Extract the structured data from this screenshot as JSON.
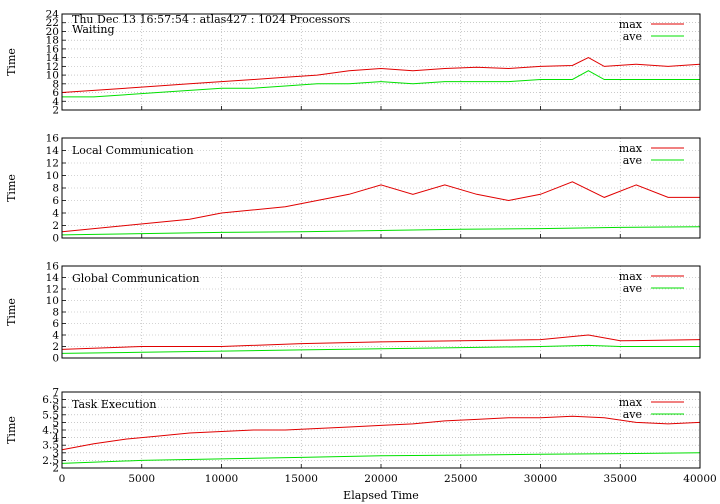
{
  "figure": {
    "header": "Thu Dec 13 16:57:54 : atlas427 : 1024 Processors",
    "xlabel": "Elapsed Time",
    "series_colors": {
      "max": "#e00000",
      "ave": "#00e000"
    }
  },
  "chart_data": [
    {
      "type": "line",
      "title": "Waiting",
      "xlabel": "Elapsed Time",
      "ylabel": "Time",
      "xlim": [
        0,
        40000
      ],
      "ylim": [
        2,
        24
      ],
      "yticks": [
        2,
        4,
        6,
        8,
        10,
        12,
        14,
        16,
        18,
        20,
        22,
        24
      ],
      "xticks": [
        0,
        5000,
        10000,
        15000,
        20000,
        25000,
        30000,
        35000,
        40000
      ],
      "show_xtick_labels": false,
      "grid": true,
      "legend": "top-right",
      "series": [
        {
          "name": "max",
          "color": "#e00000",
          "x": [
            0,
            2000,
            4000,
            6000,
            8000,
            10000,
            12000,
            14000,
            16000,
            18000,
            20000,
            22000,
            24000,
            26000,
            28000,
            30000,
            32000,
            33000,
            34000,
            36000,
            38000,
            40000
          ],
          "values": [
            6,
            6.5,
            7,
            7.5,
            8,
            8.5,
            9,
            9.5,
            10,
            11,
            11.5,
            11,
            11.5,
            11.8,
            11.5,
            12,
            12.2,
            14,
            12,
            12.5,
            12,
            12.5
          ]
        },
        {
          "name": "ave",
          "color": "#00e000",
          "x": [
            0,
            2000,
            4000,
            6000,
            8000,
            10000,
            12000,
            14000,
            16000,
            18000,
            20000,
            22000,
            24000,
            26000,
            28000,
            30000,
            32000,
            33000,
            34000,
            36000,
            38000,
            40000
          ],
          "values": [
            5,
            5,
            5.5,
            6,
            6.5,
            7,
            7,
            7.5,
            8,
            8,
            8.5,
            8,
            8.5,
            8.5,
            8.5,
            9,
            9,
            11,
            9,
            9,
            9,
            9
          ]
        }
      ]
    },
    {
      "type": "line",
      "title": "Local Communication",
      "xlabel": "Elapsed Time",
      "ylabel": "Time",
      "xlim": [
        0,
        40000
      ],
      "ylim": [
        0,
        16
      ],
      "yticks": [
        0,
        2,
        4,
        6,
        8,
        10,
        12,
        14,
        16
      ],
      "xticks": [
        0,
        5000,
        10000,
        15000,
        20000,
        25000,
        30000,
        35000,
        40000
      ],
      "show_xtick_labels": false,
      "grid": true,
      "legend": "top-right",
      "series": [
        {
          "name": "max",
          "color": "#e00000",
          "x": [
            0,
            2000,
            4000,
            6000,
            8000,
            10000,
            12000,
            14000,
            16000,
            18000,
            20000,
            22000,
            24000,
            26000,
            28000,
            30000,
            32000,
            34000,
            36000,
            38000,
            40000
          ],
          "values": [
            1,
            1.5,
            2,
            2.5,
            3,
            4,
            4.5,
            5,
            6,
            7,
            8.5,
            7,
            8.5,
            7,
            6,
            7,
            9,
            6.5,
            8.5,
            6.5,
            6.5
          ]
        },
        {
          "name": "ave",
          "color": "#00e000",
          "x": [
            0,
            5000,
            10000,
            15000,
            20000,
            25000,
            30000,
            35000,
            40000
          ],
          "values": [
            0.5,
            0.7,
            0.9,
            1,
            1.2,
            1.4,
            1.5,
            1.7,
            1.8
          ]
        }
      ]
    },
    {
      "type": "line",
      "title": "Global Communication",
      "xlabel": "Elapsed Time",
      "ylabel": "Time",
      "xlim": [
        0,
        40000
      ],
      "ylim": [
        0,
        16
      ],
      "yticks": [
        0,
        2,
        4,
        6,
        8,
        10,
        12,
        14,
        16
      ],
      "xticks": [
        0,
        5000,
        10000,
        15000,
        20000,
        25000,
        30000,
        35000,
        40000
      ],
      "show_xtick_labels": false,
      "grid": true,
      "legend": "top-right",
      "series": [
        {
          "name": "max",
          "color": "#e00000",
          "x": [
            0,
            5000,
            10000,
            15000,
            20000,
            25000,
            30000,
            33000,
            35000,
            40000
          ],
          "values": [
            1.5,
            2,
            2,
            2.5,
            2.8,
            3,
            3.2,
            4,
            3,
            3.2
          ]
        },
        {
          "name": "ave",
          "color": "#00e000",
          "x": [
            0,
            5000,
            10000,
            15000,
            20000,
            25000,
            30000,
            33000,
            35000,
            40000
          ],
          "values": [
            0.8,
            1,
            1.2,
            1.4,
            1.6,
            1.8,
            2,
            2.2,
            2,
            2
          ]
        }
      ]
    },
    {
      "type": "line",
      "title": "Task Execution",
      "xlabel": "Elapsed Time",
      "ylabel": "Time",
      "xlim": [
        0,
        40000
      ],
      "ylim": [
        2,
        7
      ],
      "yticks": [
        2,
        2.5,
        3,
        3.5,
        4,
        4.5,
        5,
        5.5,
        6,
        6.5,
        7
      ],
      "xticks": [
        0,
        5000,
        10000,
        15000,
        20000,
        25000,
        30000,
        35000,
        40000
      ],
      "show_xtick_labels": true,
      "grid": true,
      "legend": "top-right",
      "series": [
        {
          "name": "max",
          "color": "#e00000",
          "x": [
            0,
            2000,
            4000,
            6000,
            8000,
            10000,
            12000,
            14000,
            16000,
            18000,
            20000,
            22000,
            24000,
            26000,
            28000,
            30000,
            32000,
            34000,
            36000,
            38000,
            40000
          ],
          "values": [
            3.2,
            3.6,
            3.9,
            4.1,
            4.3,
            4.4,
            4.5,
            4.5,
            4.6,
            4.7,
            4.8,
            4.9,
            5.1,
            5.2,
            5.3,
            5.3,
            5.4,
            5.3,
            5.0,
            4.9,
            5.0
          ]
        },
        {
          "name": "ave",
          "color": "#00e000",
          "x": [
            0,
            5000,
            10000,
            15000,
            20000,
            25000,
            30000,
            35000,
            40000
          ],
          "values": [
            2.3,
            2.5,
            2.6,
            2.7,
            2.8,
            2.85,
            2.9,
            2.95,
            3.0
          ]
        }
      ]
    }
  ]
}
